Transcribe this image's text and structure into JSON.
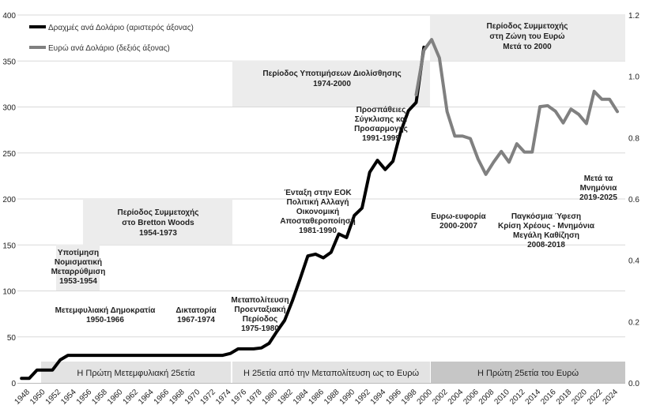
{
  "chart_data": {
    "type": "line",
    "title": "",
    "xlabel": "",
    "ylabel_left": "",
    "ylabel_right": "",
    "xlim": [
      1947.5,
      2026
    ],
    "ylim_left": [
      0,
      400
    ],
    "ylim_right": [
      0,
      1.2
    ],
    "grid": "horizontal",
    "x_ticks": [
      1948,
      1950,
      1952,
      1954,
      1956,
      1958,
      1960,
      1962,
      1964,
      1966,
      1968,
      1970,
      1972,
      1974,
      1976,
      1978,
      1980,
      1982,
      1984,
      1986,
      1988,
      1990,
      1992,
      1994,
      1996,
      1998,
      2000,
      2002,
      2004,
      2006,
      2008,
      2010,
      2012,
      2014,
      2016,
      2018,
      2020,
      2022,
      2024
    ],
    "y_ticks_left": [
      0,
      50,
      100,
      150,
      200,
      250,
      300,
      350,
      400
    ],
    "y_ticks_right": [
      "0.0",
      "0.2",
      "0.4",
      "0.6",
      "0.8",
      "1.0",
      "1.2"
    ],
    "legend": [
      {
        "name": "Δραχμές ανά Δολάριο (αριστερός άξονας)",
        "color": "#000000"
      },
      {
        "name": "Ευρώ ανά Δολάριο (δεξιός άξονας)",
        "color": "#808080"
      }
    ],
    "series": [
      {
        "name": "Δραχμές ανά Δολάριο (αριστερός άξονας)",
        "axis": "left",
        "color": "#000000",
        "x": [
          1948,
          1949,
          1950,
          1951,
          1952,
          1953,
          1954,
          1955,
          1956,
          1957,
          1958,
          1959,
          1960,
          1961,
          1962,
          1963,
          1964,
          1965,
          1966,
          1967,
          1968,
          1969,
          1970,
          1971,
          1972,
          1973,
          1974,
          1975,
          1976,
          1977,
          1978,
          1979,
          1980,
          1981,
          1982,
          1983,
          1984,
          1985,
          1986,
          1987,
          1988,
          1989,
          1990,
          1991,
          1992,
          1993,
          1994,
          1995,
          1996,
          1997,
          1998,
          1999,
          2000
        ],
        "values": [
          5,
          5,
          14,
          14,
          14,
          25,
          30,
          30,
          30,
          30,
          30,
          30,
          30,
          30,
          30,
          30,
          30,
          30,
          30,
          30,
          30,
          30,
          30,
          30,
          30,
          30,
          30,
          32,
          37,
          37,
          37,
          38,
          43,
          56,
          68,
          89,
          113,
          138,
          140,
          136,
          142,
          162,
          158,
          182,
          190,
          229,
          242,
          232,
          241,
          273,
          296,
          305,
          365
        ]
      },
      {
        "name": "Ευρώ ανά Δολάριο (δεξιός άξονας)",
        "axis": "right",
        "color": "#808080",
        "x": [
          1999,
          2000,
          2001,
          2002,
          2003,
          2004,
          2005,
          2006,
          2007,
          2008,
          2009,
          2010,
          2011,
          2012,
          2013,
          2014,
          2015,
          2016,
          2017,
          2018,
          2019,
          2020,
          2021,
          2022,
          2023,
          2024,
          2025
        ],
        "values": [
          0.94,
          1.085,
          1.12,
          1.06,
          0.885,
          0.805,
          0.805,
          0.797,
          0.73,
          0.68,
          0.72,
          0.755,
          0.72,
          0.78,
          0.753,
          0.753,
          0.901,
          0.904,
          0.886,
          0.848,
          0.893,
          0.876,
          0.846,
          0.951,
          0.925,
          0.925,
          0.885
        ]
      }
    ],
    "shaded_bands": [
      {
        "text": "Περίοδος Υποτιμήσεων Διολίσθησης",
        "years": "1974-2000"
      },
      {
        "text": "Περίοδος Συμμετοχής",
        "line2": "στη Ζώνη του Ευρώ",
        "line3": "Μετά το 2000"
      },
      {
        "text": "Περίοδος Συμμετοχής",
        "line2": "στο Bretton Woods",
        "years": "1954-1973"
      },
      {
        "text": "Υποτίμηση",
        "line2": "Νομισματική",
        "line3": "Μεταρρύθμιση",
        "years": "1953-1954"
      }
    ],
    "bottom_bars": [
      {
        "label": "Η Πρώτη Μετεμφυλιακή 25ετία"
      },
      {
        "label": "Η 25ετία από την Μεταπολίτευση ως το Ευρώ"
      },
      {
        "label": "Η Πρώτη 25ετία του Ευρώ"
      }
    ],
    "annotations": [
      {
        "lines": [
          "Μετεμφυλιακή Δημοκρατία",
          "1950-1966"
        ]
      },
      {
        "lines": [
          "Δικτατορία",
          "1967-1974"
        ]
      },
      {
        "lines": [
          "Μεταπολίτευση",
          "Προενταξιακή",
          "Περίοδος",
          "1975-1980"
        ]
      },
      {
        "lines": [
          "Ένταξη στην ΕΟΚ",
          "Πολιτική Αλλαγή",
          "Οικονομική",
          "Αποσταθεροποίηση",
          "1981-1990"
        ]
      },
      {
        "lines": [
          "Προσπάθειες",
          "Σύγκλισης και",
          "Προσαρμογής",
          "1991-1999"
        ]
      },
      {
        "lines": [
          "Ευρω-ευφορία",
          "2000-2007"
        ]
      },
      {
        "lines": [
          "Παγκόσμια Ύφεση",
          "Κρίση Χρέους - Μνημόνια",
          "Μεγάλη Καθίζηση",
          "2008-2018"
        ]
      },
      {
        "lines": [
          "Μετά τα",
          "Μνημόνια",
          "2019-2025"
        ]
      }
    ]
  }
}
